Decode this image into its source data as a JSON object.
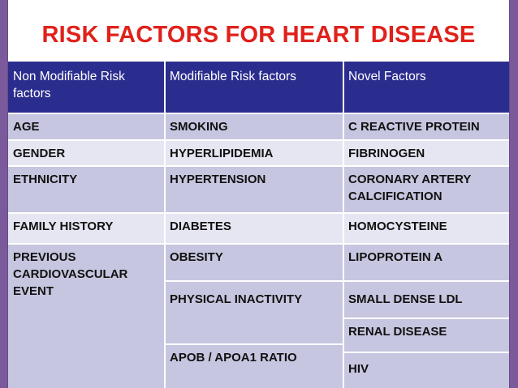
{
  "title": "RISK FACTORS FOR HEART DISEASE",
  "headers": [
    "Non Modifiable Risk factors",
    "Modifiable Risk factors",
    "Novel  Factors"
  ],
  "rows": [
    [
      "AGE",
      "SMOKING",
      "C REACTIVE PROTEIN"
    ],
    [
      "GENDER",
      "HYPERLIPIDEMIA",
      "FIBRINOGEN"
    ],
    [
      "ETHNICITY",
      "HYPERTENSION",
      "CORONARY ARTERY CALCIFICATION"
    ],
    [
      "FAMILY HISTORY",
      "DIABETES",
      "HOMOCYSTEINE"
    ],
    [
      "PREVIOUS CARDIOVASCULAR EVENT",
      "OBESITY",
      "LIPOPROTEIN A"
    ]
  ],
  "extra_modifiable": [
    "PHYSICAL INACTIVITY",
    "APOB / APOA1  RATIO"
  ],
  "extra_novel": [
    "SMALL DENSE LDL",
    "RENAL DISEASE",
    "HIV"
  ],
  "colors": {
    "title": "#e0211b",
    "header_bg": "#2b2d8e",
    "row_dark": "#c6c6e0",
    "row_light": "#e6e6f2",
    "border_frame": "#7b5a9c"
  }
}
